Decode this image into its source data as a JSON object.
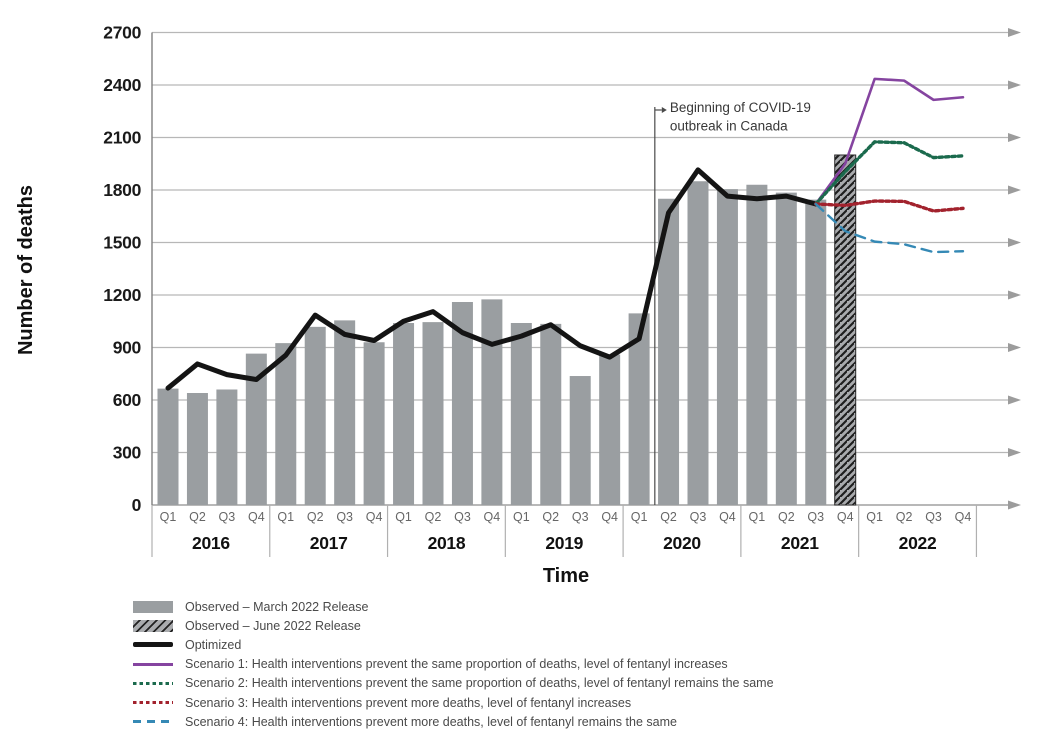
{
  "chart_data": {
    "type": "bar",
    "title": "",
    "xlabel": "Time",
    "ylabel": "Number of deaths",
    "ylim": [
      0,
      2700
    ],
    "y_ticks": [
      0,
      300,
      600,
      900,
      1200,
      1500,
      1800,
      2100,
      2400,
      2700
    ],
    "grid": "horizontal-with-right-arrows",
    "years": [
      "2016",
      "2017",
      "2018",
      "2019",
      "2020",
      "2021",
      "2022"
    ],
    "quarters_per_year": [
      "Q1",
      "Q2",
      "Q3",
      "Q4"
    ],
    "annotation": {
      "lines": [
        "Beginning of COVID-19",
        "outbreak in Canada"
      ],
      "position_quarter": "2020 Q1"
    },
    "series": [
      {
        "name": "Observed – March 2022 Release",
        "type": "bar",
        "color": "#9a9ea1",
        "start_quarter": "2016 Q1",
        "values": [
          665,
          640,
          660,
          865,
          925,
          1018,
          1055,
          930,
          1040,
          1045,
          1160,
          1175,
          1040,
          1035,
          737,
          860,
          1095,
          1750,
          1850,
          1805,
          1830,
          1785,
          1745
        ]
      },
      {
        "name": "Observed – June 2022 Release",
        "type": "bar-hatched",
        "color": "#a9abae",
        "hatch_color": "#1f1f1f",
        "start_quarter": "2021 Q4",
        "values": [
          2000
        ]
      },
      {
        "name": "Optimized",
        "type": "line",
        "style": "solid-thick",
        "color": "#141414",
        "start_quarter": "2016 Q1",
        "values": [
          668,
          806,
          745,
          717,
          856,
          1085,
          975,
          940,
          1050,
          1105,
          985,
          918,
          965,
          1030,
          910,
          845,
          950,
          1670,
          1915,
          1765,
          1750,
          1765,
          1720
        ]
      },
      {
        "name": "Scenario 1: Health interventions prevent the same proportion of deaths, level of fentanyl increases",
        "type": "line",
        "style": "solid",
        "color": "#8544a0",
        "start_quarter": "2021 Q3",
        "values": [
          1720,
          1950,
          2435,
          2425,
          2315,
          2330
        ]
      },
      {
        "name": "Scenario 2: Health interventions prevent the same proportion of deaths, level of fentanyl remains the same",
        "type": "line",
        "style": "dotted",
        "color": "#1b6a4d",
        "start_quarter": "2021 Q3",
        "values": [
          1720,
          1905,
          2075,
          2070,
          1985,
          1995
        ]
      },
      {
        "name": "Scenario 3: Health interventions prevent more deaths, level of fentanyl increases",
        "type": "line",
        "style": "dotted",
        "color": "#a2222d",
        "start_quarter": "2021 Q3",
        "values": [
          1720,
          1712,
          1737,
          1735,
          1680,
          1695
        ]
      },
      {
        "name": "Scenario 4: Health interventions prevent more deaths, level of fentanyl remains the same",
        "type": "line",
        "style": "dashed",
        "color": "#3589b5",
        "start_quarter": "2021 Q3",
        "values": [
          1720,
          1565,
          1505,
          1490,
          1445,
          1450
        ]
      }
    ]
  },
  "legend": {
    "position": "bottom-left"
  }
}
